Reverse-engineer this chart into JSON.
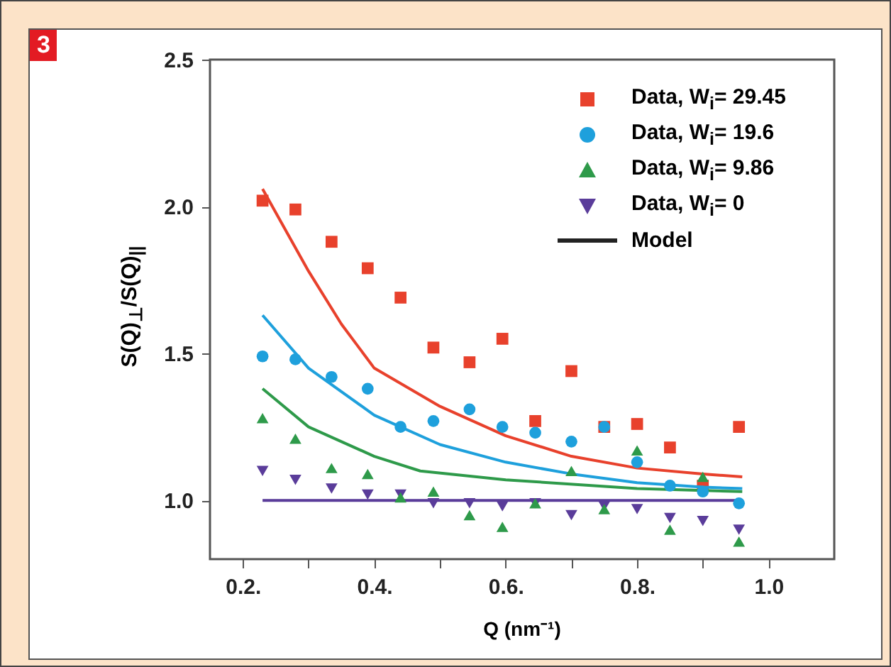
{
  "chart_data": {
    "type": "scatter",
    "title": "3",
    "xlabel": "Q (nm⁻¹)",
    "ylabel": "S(Q)$_{⊥}$/S(Q)$_{||}$",
    "xlim": [
      0.15,
      1.1
    ],
    "ylim": [
      0.8,
      2.5
    ],
    "xticks": [
      {
        "value": 0.2,
        "label": "0.2."
      },
      {
        "value": 0.3,
        "label": null
      },
      {
        "value": 0.4,
        "label": "0.4."
      },
      {
        "value": 0.5,
        "label": null
      },
      {
        "value": 0.6,
        "label": "0.6."
      },
      {
        "value": 0.7,
        "label": null
      },
      {
        "value": 0.8,
        "label": "0.8."
      },
      {
        "value": 0.9,
        "label": null
      },
      {
        "value": 1.0,
        "label": "1.0"
      }
    ],
    "yticks": [
      {
        "value": 1.0,
        "label": "1.0"
      },
      1.5,
      {
        "value": 2.0,
        "label": "2.0"
      },
      2.5
    ],
    "grid": false,
    "legend": "top right",
    "x": [
      0.23,
      0.28,
      0.335,
      0.39,
      0.44,
      0.49,
      0.545,
      0.595,
      0.645,
      0.7,
      0.75,
      0.8,
      0.85,
      0.9,
      0.955
    ],
    "series": [
      {
        "name": "Data, W$_{i}$= 29.45",
        "color": "#e8412c",
        "marker": "square",
        "values": [
          2.02,
          1.99,
          1.88,
          1.79,
          1.69,
          1.52,
          1.47,
          1.55,
          1.27,
          1.44,
          1.25,
          1.26,
          1.18,
          1.05,
          1.25
        ]
      },
      {
        "name": "Data, W$_{i}$= 19.6",
        "color": "#1ea0dc",
        "marker": "circle",
        "values": [
          1.49,
          1.48,
          1.42,
          1.38,
          1.25,
          1.27,
          1.31,
          1.25,
          1.23,
          1.2,
          1.25,
          1.13,
          1.05,
          1.03,
          0.99
        ]
      },
      {
        "name": "Data, W$_{i}$= 9.86",
        "color": "#2e9a4a",
        "marker": "triangle",
        "values": [
          1.28,
          1.21,
          1.11,
          1.09,
          1.01,
          1.03,
          0.95,
          0.91,
          0.99,
          1.1,
          0.97,
          1.17,
          0.9,
          1.08,
          0.86
        ]
      },
      {
        "name": "Data, W$_{i}$= 0",
        "color": "#5a3c9a",
        "marker": "triangle-down",
        "values": [
          1.1,
          1.07,
          1.04,
          1.02,
          1.02,
          0.99,
          0.99,
          0.98,
          0.99,
          0.95,
          0.98,
          0.97,
          0.94,
          0.93,
          0.9
        ]
      },
      {
        "type": "line",
        "color": "#e8412c",
        "x": [
          0.23,
          0.3,
          0.35,
          0.4,
          0.5,
          0.6,
          0.7,
          0.8,
          0.9,
          0.96
        ],
        "values": [
          2.06,
          1.78,
          1.6,
          1.45,
          1.32,
          1.22,
          1.15,
          1.11,
          1.09,
          1.08
        ]
      },
      {
        "type": "line",
        "color": "#1ea0dc",
        "x": [
          0.23,
          0.3,
          0.4,
          0.5,
          0.6,
          0.7,
          0.8,
          0.9,
          0.96
        ],
        "values": [
          1.63,
          1.45,
          1.29,
          1.19,
          1.13,
          1.09,
          1.06,
          1.045,
          1.04
        ]
      },
      {
        "type": "line",
        "color": "#2e9a4a",
        "x": [
          0.23,
          0.3,
          0.4,
          0.47,
          0.6,
          0.8,
          0.96
        ],
        "values": [
          1.38,
          1.25,
          1.15,
          1.1,
          1.07,
          1.04,
          1.03
        ]
      },
      {
        "type": "line",
        "color": "#5a3c9a",
        "x": [
          0.23,
          0.96
        ],
        "values": [
          1.0,
          1.0
        ]
      }
    ],
    "annotations": [
      "Model"
    ]
  }
}
